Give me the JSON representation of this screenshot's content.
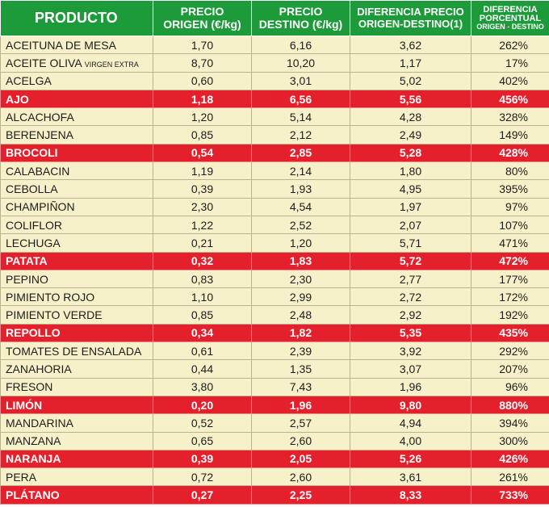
{
  "header": {
    "producto": "PRODUCTO",
    "origen_line1": "PRECIO",
    "origen_line2": "ORIGEN (€/kg)",
    "destino_line1": "PRECIO",
    "destino_line2": "DESTINO (€/kg)",
    "diferencia_line1": "DIFERENCIA PRECIO",
    "diferencia_line2": "ORIGEN-DESTINO(1)",
    "porcentual_line1": "DIFERENCIA",
    "porcentual_line2": "PORCENTUAL",
    "porcentual_line3": "ORIGEN - DESTINO"
  },
  "highlight_color": "#e3202b",
  "header_color": "#1d9b3a",
  "row_color": "#f7f1c9",
  "rows": [
    {
      "name": "ACEITUNA DE MESA",
      "note": "",
      "origen": "1,70",
      "destino": "6,16",
      "diferencia": "3,62",
      "porcentual": "262%",
      "highlight": false
    },
    {
      "name": "ACEITE OLIVA",
      "note": "VIRGEN EXTRA",
      "origen": "8,70",
      "destino": "10,20",
      "diferencia": "1,17",
      "porcentual": "17%",
      "highlight": false
    },
    {
      "name": "ACELGA",
      "note": "",
      "origen": "0,60",
      "destino": "3,01",
      "diferencia": "5,02",
      "porcentual": "402%",
      "highlight": false
    },
    {
      "name": "AJO",
      "note": "",
      "origen": "1,18",
      "destino": "6,56",
      "diferencia": "5,56",
      "porcentual": "456%",
      "highlight": true
    },
    {
      "name": "ALCACHOFA",
      "note": "",
      "origen": "1,20",
      "destino": "5,14",
      "diferencia": "4,28",
      "porcentual": "328%",
      "highlight": false
    },
    {
      "name": "BERENJENA",
      "note": "",
      "origen": "0,85",
      "destino": "2,12",
      "diferencia": "2,49",
      "porcentual": "149%",
      "highlight": false
    },
    {
      "name": "BROCOLI",
      "note": "",
      "origen": "0,54",
      "destino": "2,85",
      "diferencia": "5,28",
      "porcentual": "428%",
      "highlight": true
    },
    {
      "name": "CALABACIN",
      "note": "",
      "origen": "1,19",
      "destino": "2,14",
      "diferencia": "1,80",
      "porcentual": "80%",
      "highlight": false
    },
    {
      "name": "CEBOLLA",
      "note": "",
      "origen": "0,39",
      "destino": "1,93",
      "diferencia": "4,95",
      "porcentual": "395%",
      "highlight": false
    },
    {
      "name": "CHAMPIÑON",
      "note": "",
      "origen": "2,30",
      "destino": "4,54",
      "diferencia": "1,97",
      "porcentual": "97%",
      "highlight": false
    },
    {
      "name": "COLIFLOR",
      "note": "",
      "origen": "1,22",
      "destino": "2,52",
      "diferencia": "2,07",
      "porcentual": "107%",
      "highlight": false
    },
    {
      "name": "LECHUGA",
      "note": "",
      "origen": "0,21",
      "destino": "1,20",
      "diferencia": "5,71",
      "porcentual": "471%",
      "highlight": false
    },
    {
      "name": "PATATA",
      "note": "",
      "origen": "0,32",
      "destino": "1,83",
      "diferencia": "5,72",
      "porcentual": "472%",
      "highlight": true
    },
    {
      "name": "PEPINO",
      "note": "",
      "origen": "0,83",
      "destino": "2,30",
      "diferencia": "2,77",
      "porcentual": "177%",
      "highlight": false
    },
    {
      "name": "PIMIENTO ROJO",
      "note": "",
      "origen": "1,10",
      "destino": "2,99",
      "diferencia": "2,72",
      "porcentual": "172%",
      "highlight": false
    },
    {
      "name": "PIMIENTO VERDE",
      "note": "",
      "origen": "0,85",
      "destino": "2,48",
      "diferencia": "2,92",
      "porcentual": "192%",
      "highlight": false
    },
    {
      "name": "REPOLLO",
      "note": "",
      "origen": "0,34",
      "destino": "1,82",
      "diferencia": "5,35",
      "porcentual": "435%",
      "highlight": true
    },
    {
      "name": "TOMATES DE ENSALADA",
      "note": "",
      "origen": "0,61",
      "destino": "2,39",
      "diferencia": "3,92",
      "porcentual": "292%",
      "highlight": false
    },
    {
      "name": "ZANAHORIA",
      "note": "",
      "origen": "0,44",
      "destino": "1,35",
      "diferencia": "3,07",
      "porcentual": "207%",
      "highlight": false
    },
    {
      "name": "FRESON",
      "note": "",
      "origen": "3,80",
      "destino": "7,43",
      "diferencia": "1,96",
      "porcentual": "96%",
      "highlight": false
    },
    {
      "name": "LIMÓN",
      "note": "",
      "origen": "0,20",
      "destino": "1,96",
      "diferencia": "9,80",
      "porcentual": "880%",
      "highlight": true
    },
    {
      "name": "MANDARINA",
      "note": "",
      "origen": "0,52",
      "destino": "2,57",
      "diferencia": "4,94",
      "porcentual": "394%",
      "highlight": false
    },
    {
      "name": "MANZANA",
      "note": "",
      "origen": "0,65",
      "destino": "2,60",
      "diferencia": "4,00",
      "porcentual": "300%",
      "highlight": false
    },
    {
      "name": "NARANJA",
      "note": "",
      "origen": "0,39",
      "destino": "2,05",
      "diferencia": "5,26",
      "porcentual": "426%",
      "highlight": true
    },
    {
      "name": "PERA",
      "note": "",
      "origen": "0,72",
      "destino": "2,60",
      "diferencia": "3,61",
      "porcentual": "261%",
      "highlight": false
    },
    {
      "name": "PLÁTANO",
      "note": "",
      "origen": "0,27",
      "destino": "2,25",
      "diferencia": "8,33",
      "porcentual": "733%",
      "highlight": true
    }
  ]
}
